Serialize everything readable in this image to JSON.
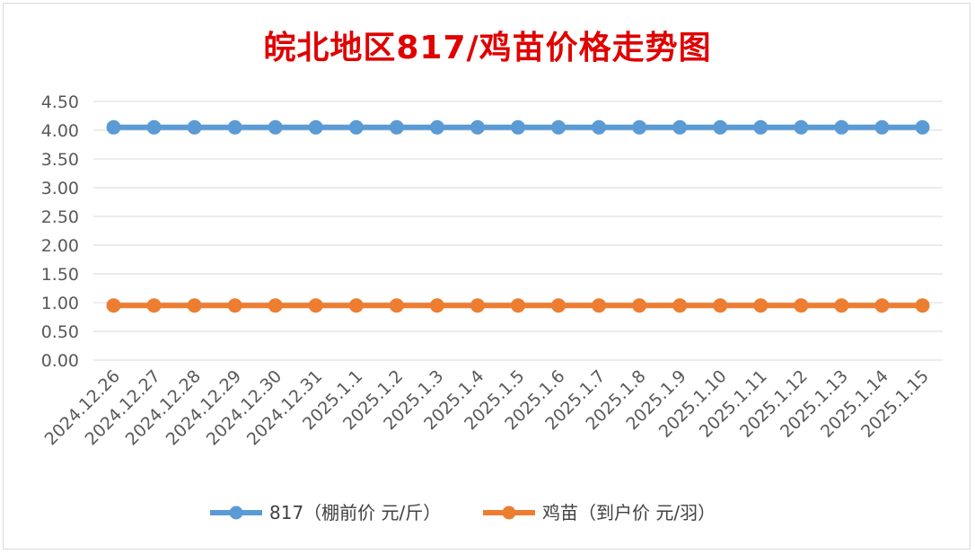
{
  "chart_data": {
    "type": "line",
    "title": "皖北地区817/鸡苗价格走势图",
    "categories": [
      "2024.12.26",
      "2024.12.27",
      "2024.12.28",
      "2024.12.29",
      "2024.12.30",
      "2024.12.31",
      "2025.1.1",
      "2025.1.2",
      "2025.1.3",
      "2025.1.4",
      "2025.1.5",
      "2025.1.6",
      "2025.1.7",
      "2025.1.8",
      "2025.1.9",
      "2025.1.10",
      "2025.1.11",
      "2025.1.12",
      "2025.1.13",
      "2025.1.14",
      "2025.1.15"
    ],
    "series": [
      {
        "name": "817（棚前价 元/斤）",
        "color": "#5b9bd5",
        "values": [
          4.05,
          4.05,
          4.05,
          4.05,
          4.05,
          4.05,
          4.05,
          4.05,
          4.05,
          4.05,
          4.05,
          4.05,
          4.05,
          4.05,
          4.05,
          4.05,
          4.05,
          4.05,
          4.05,
          4.05,
          4.05
        ]
      },
      {
        "name": "鸡苗（到户价 元/羽）",
        "color": "#ed7d31",
        "values": [
          0.95,
          0.95,
          0.95,
          0.95,
          0.95,
          0.95,
          0.95,
          0.95,
          0.95,
          0.95,
          0.95,
          0.95,
          0.95,
          0.95,
          0.95,
          0.95,
          0.95,
          0.95,
          0.95,
          0.95,
          0.95
        ]
      }
    ],
    "ylim": [
      0,
      4.5
    ],
    "yticks": [
      "0.00",
      "0.50",
      "1.00",
      "1.50",
      "2.00",
      "2.50",
      "3.00",
      "3.50",
      "4.00",
      "4.50"
    ],
    "grid": true,
    "legend_position": "bottom"
  }
}
